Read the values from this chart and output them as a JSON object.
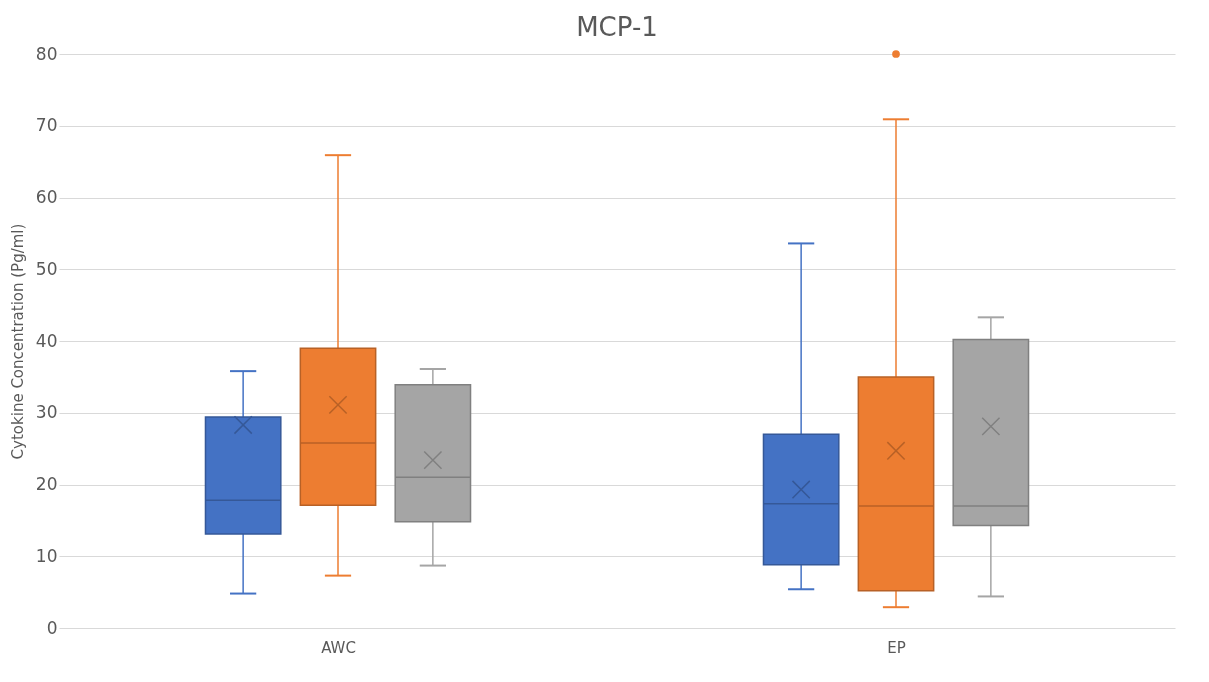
{
  "chart_data": {
    "type": "box",
    "title": "MCP-1",
    "ylabel": "Cytokine Concentration (Pg/ml)",
    "categories": [
      "AWC",
      "EP"
    ],
    "ylim": [
      0,
      80
    ],
    "yticks": [
      0,
      10,
      20,
      30,
      40,
      50,
      60,
      70,
      80
    ],
    "grid": "y",
    "series": [
      {
        "color": "#4472c4",
        "boxes": [
          {
            "low": 4.8,
            "q1": 13.1,
            "median": 17.8,
            "q3": 29.4,
            "high": 35.8,
            "mean": 28.3
          },
          {
            "low": 5.4,
            "q1": 8.8,
            "median": 17.3,
            "q3": 27.0,
            "high": 53.6,
            "mean": 19.3
          }
        ]
      },
      {
        "color": "#ed7d31",
        "boxes": [
          {
            "low": 7.3,
            "q1": 17.1,
            "median": 25.8,
            "q3": 39.0,
            "high": 65.9,
            "mean": 31.1
          },
          {
            "low": 2.9,
            "q1": 5.2,
            "median": 17.0,
            "q3": 35.0,
            "high": 70.9,
            "mean": 24.7,
            "outliers": [
              80
            ]
          }
        ]
      },
      {
        "color": "#a5a5a5",
        "boxes": [
          {
            "low": 8.7,
            "q1": 14.8,
            "median": 21.0,
            "q3": 33.9,
            "high": 36.1,
            "mean": 23.4
          },
          {
            "low": 4.4,
            "q1": 14.3,
            "median": 17.0,
            "q3": 40.2,
            "high": 43.3,
            "mean": 28.1
          }
        ]
      }
    ]
  }
}
